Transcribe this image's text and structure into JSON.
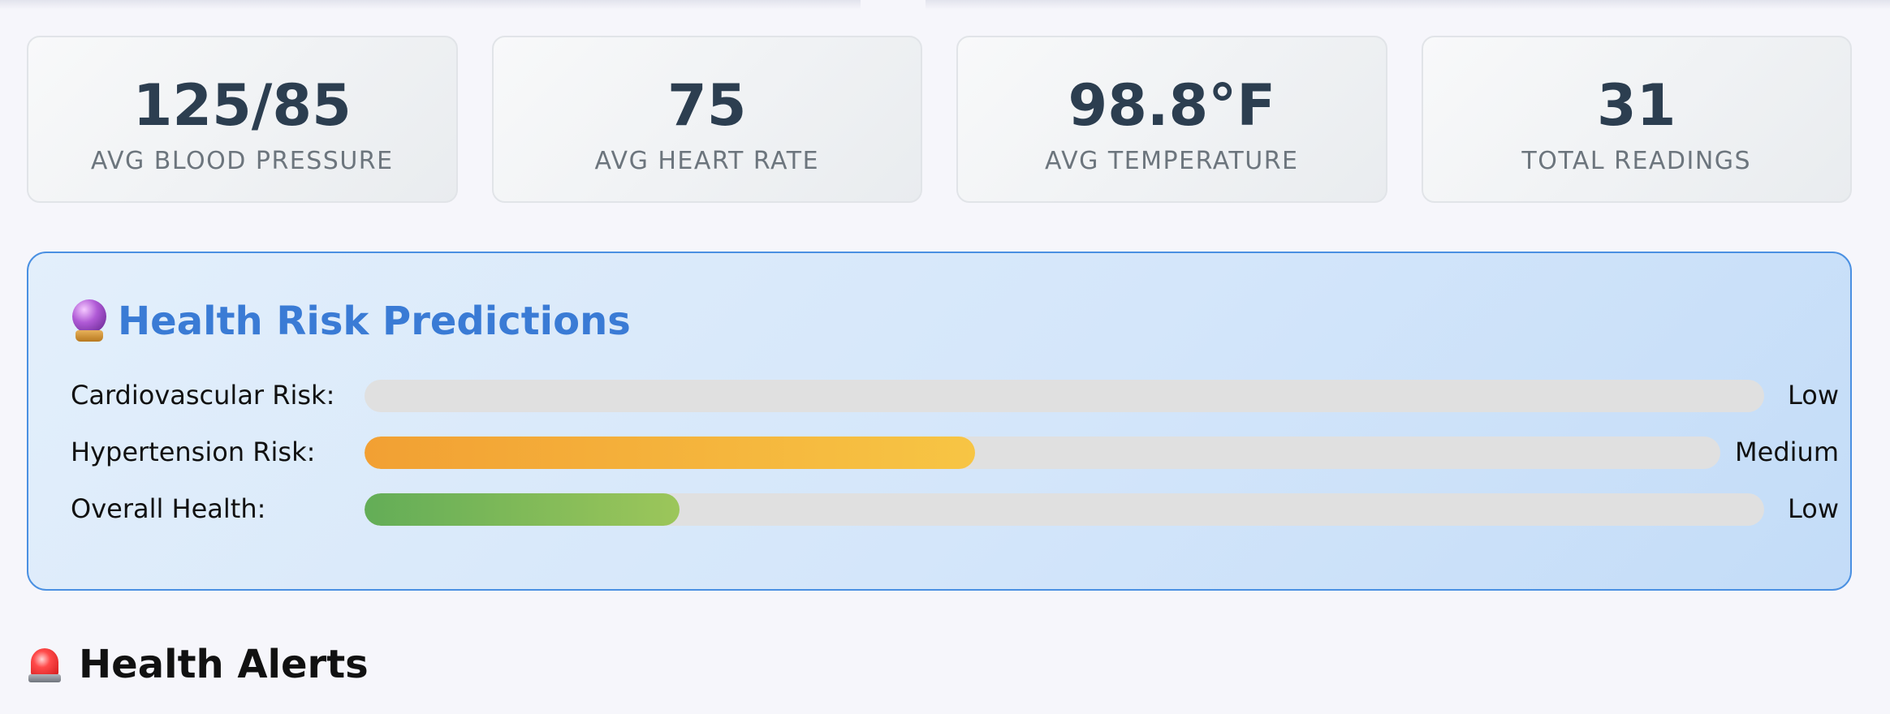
{
  "stats": [
    {
      "value": "125/85",
      "label": "AVG BLOOD PRESSURE"
    },
    {
      "value": "75",
      "label": "AVG HEART RATE"
    },
    {
      "value": "98.8°F",
      "label": "AVG TEMPERATURE"
    },
    {
      "value": "31",
      "label": "TOTAL READINGS"
    }
  ],
  "predictions": {
    "icon": "crystal-ball-icon",
    "title": "Health Risk Predictions",
    "risks": [
      {
        "label": "Cardiovascular Risk:",
        "level": "Low",
        "fill": 0,
        "color": "none"
      },
      {
        "label": "Hypertension Risk:",
        "level": "Medium",
        "fill": 0.45,
        "color": "#f2a033"
      },
      {
        "label": "Overall Health:",
        "level": "Low",
        "fill": 0.225,
        "color": "#63ad57"
      }
    ]
  },
  "alerts": {
    "icon": "siren-icon",
    "title": "Health Alerts"
  }
}
